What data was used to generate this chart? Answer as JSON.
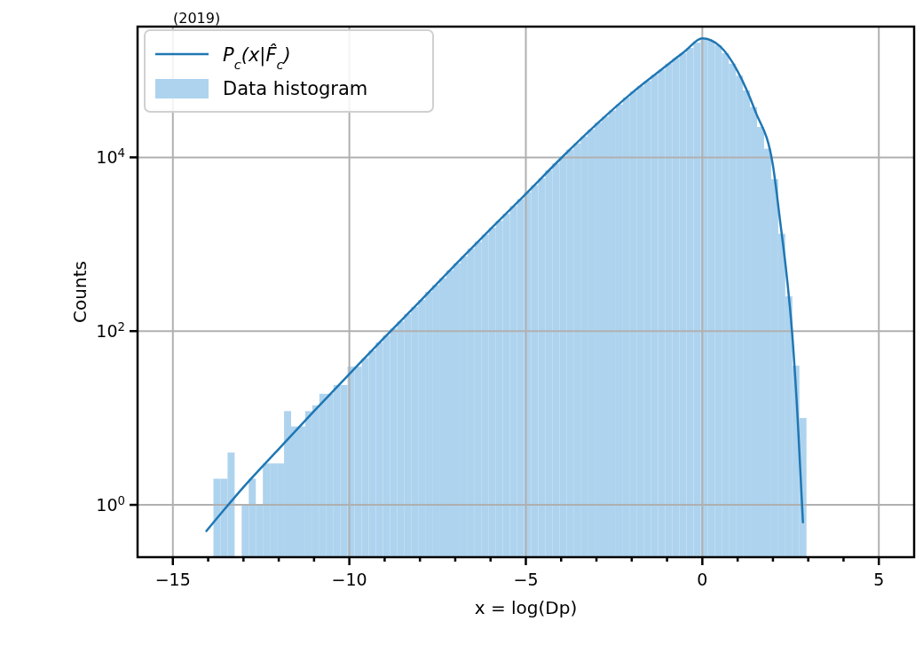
{
  "chart_data": {
    "type": "histogram",
    "xlabel": "x = log(Dp)",
    "ylabel": "Counts",
    "annotations": [
      "(2019)"
    ],
    "xlim": [
      -16,
      6
    ],
    "ylim": [
      0.25,
      320000
    ],
    "log": "y",
    "grid": true,
    "legend": "top left",
    "xticks": [
      {
        "value": -15,
        "label": "−15"
      },
      {
        "value": -14,
        "label": null
      },
      {
        "value": -13,
        "label": null
      },
      {
        "value": -12,
        "label": null
      },
      {
        "value": -11,
        "label": null
      },
      {
        "value": -10,
        "label": "−10"
      },
      {
        "value": -9,
        "label": null
      },
      {
        "value": -8,
        "label": null
      },
      {
        "value": -7,
        "label": null
      },
      {
        "value": -6,
        "label": null
      },
      {
        "value": -5,
        "label": "−5"
      },
      {
        "value": -4,
        "label": null
      },
      {
        "value": -3,
        "label": null
      },
      {
        "value": -2,
        "label": null
      },
      {
        "value": -1,
        "label": null
      },
      {
        "value": 0,
        "label": "0"
      },
      {
        "value": 1,
        "label": null
      },
      {
        "value": 2,
        "label": null
      },
      {
        "value": 3,
        "label": null
      },
      {
        "value": 4,
        "label": null
      },
      {
        "value": 5,
        "label": "5"
      }
    ],
    "yticks": [
      {
        "value": 1,
        "label": "10$^{0}$"
      },
      {
        "value": 100,
        "label": "10$^{2}$"
      },
      {
        "value": 10000,
        "label": "10$^{4}$"
      }
    ],
    "series": [
      {
        "type": "line",
        "name": "P$_{c}$(x|F̂$_{c}$)",
        "color": "#1f77b4",
        "x": [
          -14.05,
          -13,
          -12,
          -11,
          -10,
          -9,
          -8,
          -7,
          -6,
          -5,
          -4,
          -3,
          -2,
          -1,
          -0.5,
          0,
          0.5,
          1,
          1.5,
          2,
          2.2,
          2.4,
          2.54,
          2.7,
          2.85
        ],
        "values": [
          0.5,
          1.6,
          4.4,
          12,
          32,
          85,
          220,
          580,
          1500,
          3800,
          9800,
          24000,
          55000,
          115000,
          166000,
          234000,
          190000,
          98000,
          34000,
          8100,
          1900,
          400,
          100,
          10,
          0.63
        ]
      },
      {
        "name": "Data histogram",
        "color": "#aed3ee",
        "bins": [
          -13.85,
          -13.65,
          -13.45,
          -13.25,
          -13.05,
          -12.85,
          -12.65,
          -12.45,
          -12.25,
          -12.05,
          -11.85,
          -11.65,
          -11.45,
          -11.25,
          -11.05,
          -10.85,
          -10.65,
          -10.45,
          -10.25,
          -10.05,
          -9.85,
          -9.65,
          -9.45,
          -9.25,
          -9.05,
          -8.85,
          -8.65,
          -8.45,
          -8.25,
          -8.05,
          -7.85,
          -7.65,
          -7.45,
          -7.25,
          -7.05,
          -6.85,
          -6.65,
          -6.45,
          -6.25,
          -6.05,
          -5.85,
          -5.65,
          -5.45,
          -5.25,
          -5.05,
          -4.85,
          -4.65,
          -4.45,
          -4.25,
          -4.05,
          -3.85,
          -3.65,
          -3.45,
          -3.25,
          -3.05,
          -2.85,
          -2.65,
          -2.45,
          -2.25,
          -2.05,
          -1.85,
          -1.65,
          -1.45,
          -1.25,
          -1.05,
          -0.85,
          -0.65,
          -0.45,
          -0.25,
          -0.05,
          0.15,
          0.35,
          0.55,
          0.75,
          0.95,
          1.15,
          1.35,
          1.55,
          1.75,
          1.95,
          2.15,
          2.35,
          2.55,
          2.75,
          2.95
        ],
        "values": [
          2,
          2,
          4,
          null,
          1,
          2,
          1,
          3,
          3,
          3,
          12,
          8,
          8,
          12,
          14,
          19,
          19,
          24,
          24,
          39,
          39,
          49,
          60,
          74,
          89,
          107,
          129,
          158,
          190,
          229,
          282,
          339,
          407,
          501,
          603,
          724,
          891,
          1070,
          1290,
          1550,
          1860,
          2240,
          2750,
          3310,
          3980,
          4790,
          5750,
          7080,
          8510,
          10200,
          12300,
          14500,
          17400,
          20900,
          25100,
          29500,
          34700,
          40700,
          49000,
          57500,
          66100,
          75900,
          89100,
          102000,
          120000,
          138000,
          158000,
          182000,
          209000,
          229000,
          219000,
          195000,
          158000,
          120000,
          87100,
          58900,
          38000,
          22400,
          12600,
          5620,
          1320,
          251,
          40,
          10
        ]
      }
    ]
  }
}
